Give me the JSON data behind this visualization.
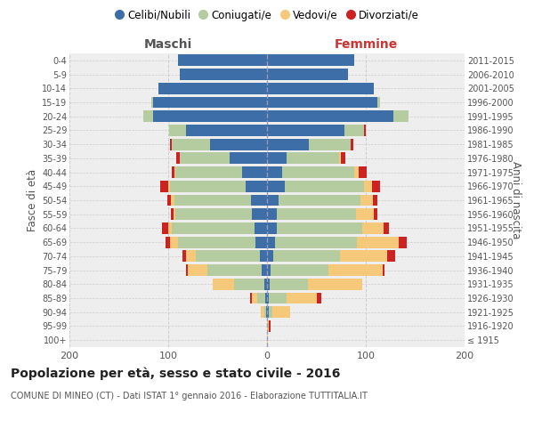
{
  "age_groups": [
    "100+",
    "95-99",
    "90-94",
    "85-89",
    "80-84",
    "75-79",
    "70-74",
    "65-69",
    "60-64",
    "55-59",
    "50-54",
    "45-49",
    "40-44",
    "35-39",
    "30-34",
    "25-29",
    "20-24",
    "15-19",
    "10-14",
    "5-9",
    "0-4"
  ],
  "birth_years": [
    "≤ 1915",
    "1916-1920",
    "1921-1925",
    "1926-1930",
    "1931-1935",
    "1936-1940",
    "1941-1945",
    "1946-1950",
    "1951-1955",
    "1956-1960",
    "1961-1965",
    "1966-1970",
    "1971-1975",
    "1976-1980",
    "1981-1985",
    "1986-1990",
    "1991-1995",
    "1996-2000",
    "2001-2005",
    "2006-2010",
    "2011-2015"
  ],
  "males": {
    "celibe": [
      0,
      0,
      1,
      2,
      3,
      5,
      7,
      12,
      13,
      15,
      16,
      22,
      25,
      38,
      58,
      82,
      115,
      115,
      110,
      88,
      90
    ],
    "coniugato": [
      0,
      0,
      2,
      8,
      30,
      55,
      65,
      78,
      83,
      78,
      78,
      76,
      68,
      50,
      38,
      17,
      10,
      2,
      0,
      0,
      0
    ],
    "vedovo": [
      0,
      0,
      3,
      5,
      22,
      20,
      10,
      8,
      4,
      2,
      3,
      2,
      1,
      0,
      0,
      0,
      0,
      0,
      0,
      0,
      0
    ],
    "divorziato": [
      0,
      0,
      0,
      2,
      0,
      2,
      4,
      5,
      6,
      2,
      4,
      8,
      2,
      4,
      2,
      0,
      0,
      0,
      0,
      0,
      0
    ]
  },
  "females": {
    "nubile": [
      0,
      0,
      2,
      2,
      3,
      4,
      6,
      8,
      10,
      10,
      12,
      18,
      15,
      20,
      42,
      78,
      128,
      112,
      108,
      82,
      88
    ],
    "coniugata": [
      0,
      0,
      3,
      18,
      38,
      58,
      68,
      83,
      86,
      80,
      83,
      80,
      73,
      53,
      43,
      20,
      15,
      2,
      0,
      0,
      0
    ],
    "vedova": [
      1,
      2,
      18,
      30,
      55,
      55,
      48,
      42,
      22,
      18,
      12,
      8,
      5,
      2,
      0,
      0,
      0,
      0,
      0,
      0,
      0
    ],
    "divorziata": [
      0,
      2,
      0,
      5,
      0,
      2,
      8,
      8,
      5,
      4,
      5,
      8,
      8,
      4,
      2,
      2,
      0,
      0,
      0,
      0,
      0
    ]
  },
  "colors": {
    "celibe": "#3d6ea8",
    "coniugato": "#b5cba0",
    "vedovo": "#f5c87a",
    "divorziato": "#cc2222"
  },
  "title": "Popolazione per età, sesso e stato civile - 2016",
  "subtitle": "COMUNE DI MINEO (CT) - Dati ISTAT 1° gennaio 2016 - Elaborazione TUTTITALIA.IT",
  "xlabel_left": "Maschi",
  "xlabel_right": "Femmine",
  "ylabel_left": "Fasce di età",
  "ylabel_right": "Anni di nascita",
  "xlim": 200,
  "legend_labels": [
    "Celibi/Nubili",
    "Coniugati/e",
    "Vedovi/e",
    "Divorziati/e"
  ],
  "background_color": "#ffffff",
  "plot_bg_color": "#eeeeee"
}
